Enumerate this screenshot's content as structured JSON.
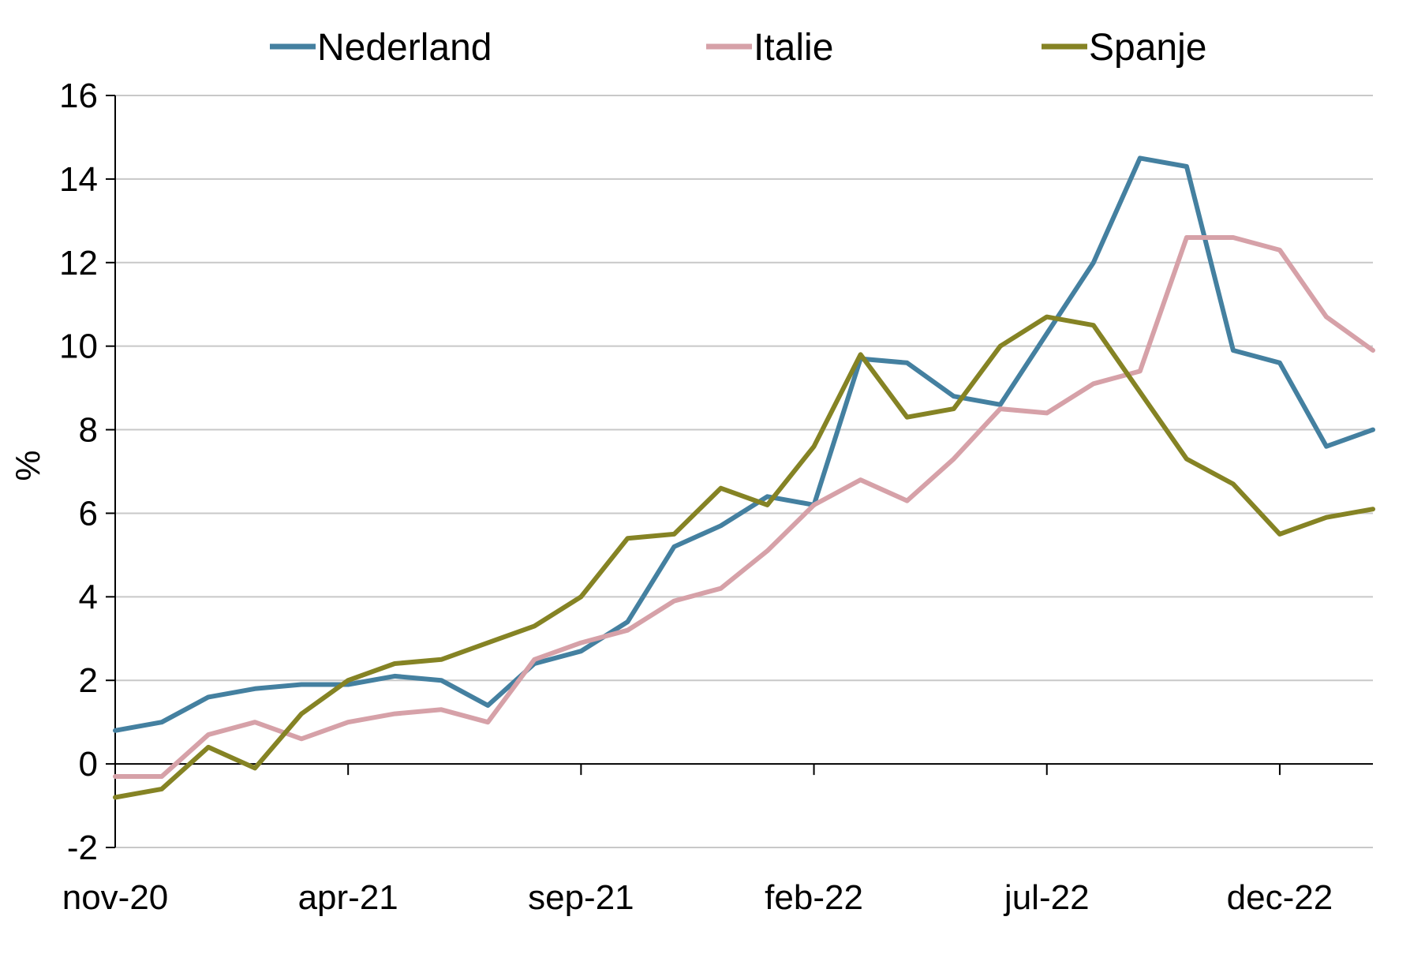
{
  "chart_data": {
    "type": "line",
    "title": "",
    "xlabel": "",
    "ylabel": "%",
    "ylim": [
      -2,
      16
    ],
    "yticks": [
      "16",
      "14",
      "12",
      "10",
      "8",
      "6",
      "4",
      "2",
      "0",
      "-2"
    ],
    "ytick_values": [
      16,
      14,
      12,
      10,
      8,
      6,
      4,
      2,
      0,
      -2
    ],
    "x": [
      "nov-20",
      "dec-20",
      "jan-21",
      "feb-21",
      "mar-21",
      "apr-21",
      "mei-21",
      "jun-21",
      "jul-21",
      "aug-21",
      "sep-21",
      "okt-21",
      "nov-21",
      "dec-21",
      "jan-22",
      "feb-22",
      "mrt-22",
      "apr-22",
      "mei-22",
      "jun-22",
      "jul-22",
      "aug-22",
      "sep-22",
      "okt-22",
      "nov-22",
      "dec-22",
      "jan-23",
      "feb-23"
    ],
    "xtick_labels": [
      "nov-20",
      "apr-21",
      "sep-21",
      "feb-22",
      "jul-22",
      "dec-22"
    ],
    "grid": true,
    "legend_position": "top",
    "series": [
      {
        "name": "Nederland",
        "color": "#4480a0",
        "values": [
          0.8,
          1.0,
          1.6,
          1.8,
          1.9,
          1.9,
          2.1,
          2.0,
          1.4,
          2.4,
          2.7,
          3.4,
          5.2,
          5.7,
          6.4,
          6.2,
          9.7,
          9.6,
          8.8,
          8.6,
          10.3,
          12.0,
          14.5,
          14.3,
          9.9,
          9.6,
          7.6,
          8.0
        ]
      },
      {
        "name": "Italie",
        "color": "#d6a1a8",
        "values": [
          -0.3,
          -0.3,
          0.7,
          1.0,
          0.6,
          1.0,
          1.2,
          1.3,
          1.0,
          2.5,
          2.9,
          3.2,
          3.9,
          4.2,
          5.1,
          6.2,
          6.8,
          6.3,
          7.3,
          8.5,
          8.4,
          9.1,
          9.4,
          12.6,
          12.6,
          12.3,
          10.7,
          9.9
        ]
      },
      {
        "name": "Spanje",
        "color": "#858324",
        "values": [
          -0.8,
          -0.6,
          0.4,
          -0.1,
          1.2,
          2.0,
          2.4,
          2.5,
          2.9,
          3.3,
          4.0,
          5.4,
          5.5,
          6.6,
          6.2,
          7.6,
          9.8,
          8.3,
          8.5,
          10.0,
          10.7,
          10.5,
          8.9,
          7.3,
          6.7,
          5.5,
          5.9,
          6.1
        ]
      }
    ]
  }
}
